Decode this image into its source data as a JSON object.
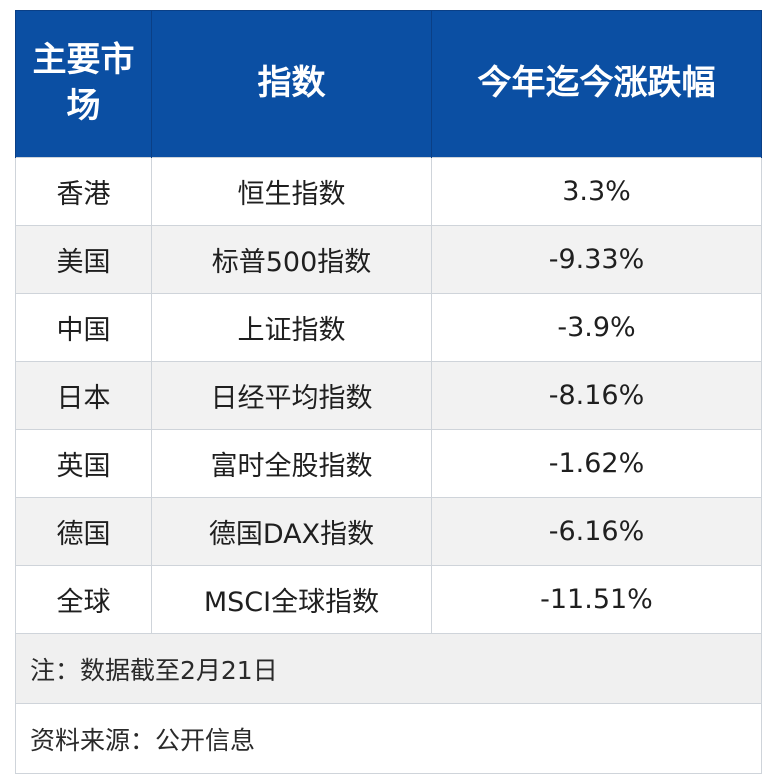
{
  "header": {
    "market": "主要市场",
    "index": "指数",
    "ytd_change": "今年迄今涨跌幅"
  },
  "rows": [
    {
      "market": "香港",
      "index": "恒生指数",
      "change": "3.3%"
    },
    {
      "market": "美国",
      "index": "标普500指数",
      "change": "-9.33%"
    },
    {
      "market": "中国",
      "index": "上证指数",
      "change": "-3.9%"
    },
    {
      "market": "日本",
      "index": "日经平均指数",
      "change": "-8.16%"
    },
    {
      "market": "英国",
      "index": "富时全股指数",
      "change": "-1.62%"
    },
    {
      "market": "德国",
      "index": "德国DAX指数",
      "change": "-6.16%"
    },
    {
      "market": "全球",
      "index": "MSCI全球指数",
      "change": "-11.51%"
    }
  ],
  "footer": {
    "note": "注：数据截至2月21日",
    "source": "资料来源：公开信息"
  },
  "colors": {
    "header_bg": "#0b4fa3",
    "header_text": "#ffffff",
    "stripe_bg": "#f2f2f2",
    "border": "#cfd4da"
  }
}
